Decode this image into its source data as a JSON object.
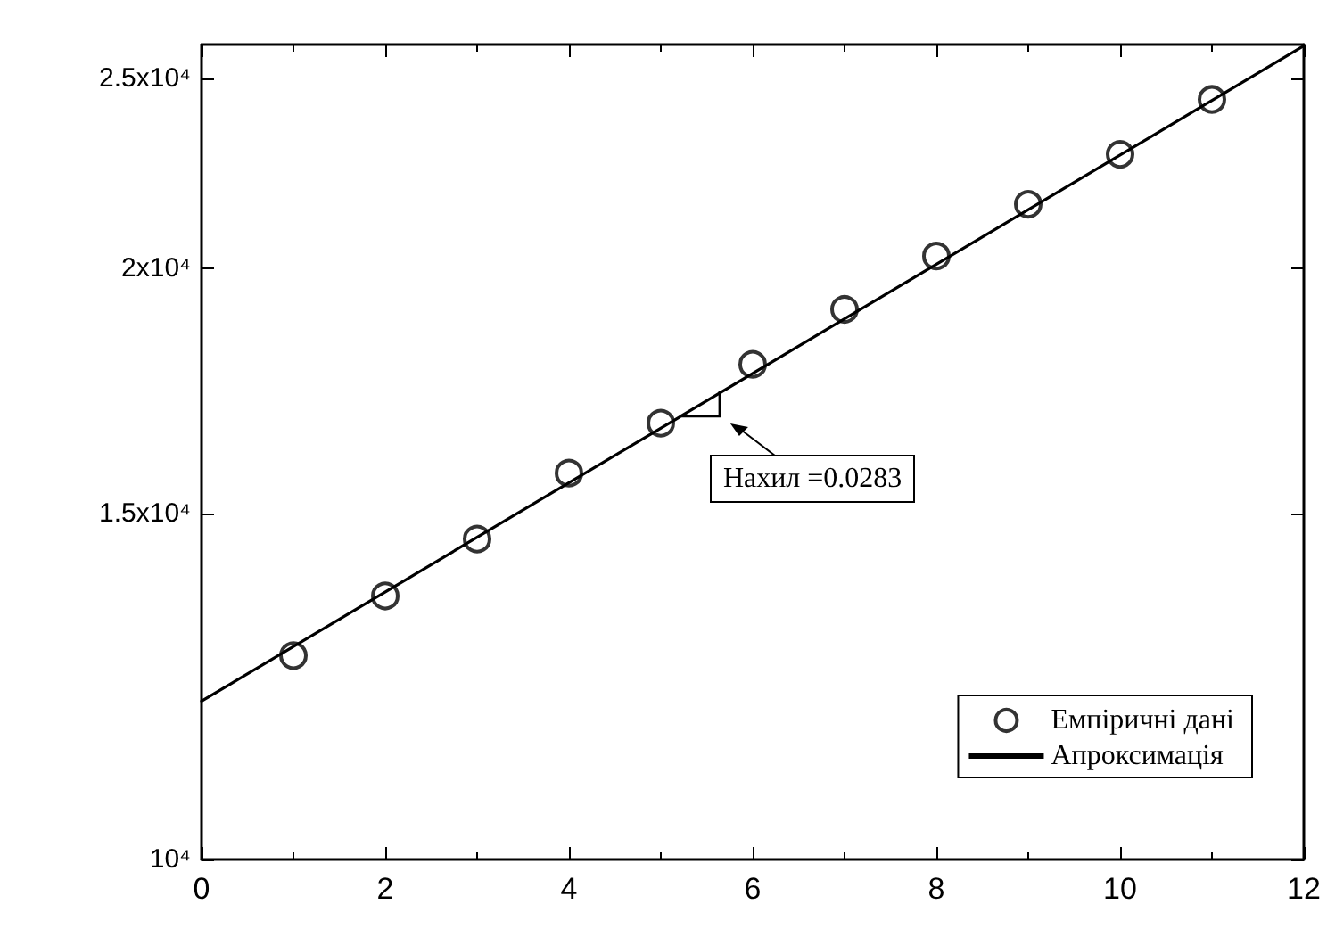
{
  "chart_data": {
    "type": "scatter",
    "log": "y",
    "legend": "bottom right",
    "grid": false,
    "marker": "circle",
    "xlim": [
      0,
      12
    ],
    "xticks": [
      0,
      2,
      4,
      6,
      8,
      10,
      12
    ],
    "ylim": [
      10000,
      26000
    ],
    "yticks": [
      {
        "value": 10000,
        "label": "10⁴"
      },
      {
        "value": 15000,
        "label": "1.5x10⁴"
      },
      {
        "value": 20000,
        "label": "2x10⁴"
      },
      {
        "value": 25000,
        "label": "2.5x10⁴"
      }
    ],
    "annotations": [
      "Нахил =0.0283"
    ],
    "series": [
      {
        "name": "Емпіричні дані",
        "color": "#000000",
        "x": [
          1,
          2,
          3,
          4,
          5,
          6,
          7,
          8,
          9,
          10,
          11
        ],
        "values": [
          12700,
          13620,
          14560,
          15730,
          16680,
          17870,
          19060,
          20290,
          21560,
          22860,
          24380
        ]
      },
      {
        "name": "Апроксимація",
        "type": "line",
        "color": "#000000",
        "marker": "none",
        "line_style": "solid",
        "x": [
          0,
          12
        ],
        "values": [
          12040,
          25960
        ]
      }
    ]
  }
}
